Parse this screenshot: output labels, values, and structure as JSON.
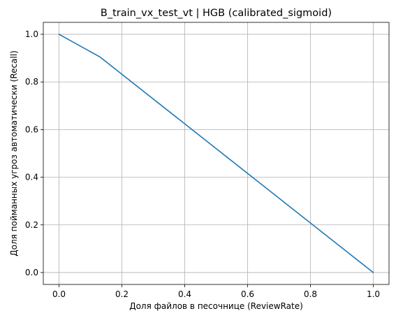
{
  "chart_data": {
    "type": "line",
    "title": "B_train_vx_test_vt | HGB (calibrated_sigmoid)",
    "xlabel": "Доля файлов в песочнице (ReviewRate)",
    "ylabel": "Доля пойманных угроз автоматически (Recall)",
    "xlim": [
      -0.05,
      1.05
    ],
    "ylim": [
      -0.05,
      1.05
    ],
    "xticks": [
      0.0,
      0.2,
      0.4,
      0.6,
      0.8,
      1.0
    ],
    "yticks": [
      0.0,
      0.2,
      0.4,
      0.6,
      0.8,
      1.0
    ],
    "xtick_labels": [
      "0.0",
      "0.2",
      "0.4",
      "0.6",
      "0.8",
      "1.0"
    ],
    "ytick_labels": [
      "0.0",
      "0.2",
      "0.4",
      "0.6",
      "0.8",
      "1.0"
    ],
    "grid": true,
    "series": [
      {
        "color": "#1f77b4",
        "x": [
          0.0,
          0.13,
          1.0
        ],
        "y": [
          1.0,
          0.905,
          0.0
        ]
      }
    ]
  }
}
